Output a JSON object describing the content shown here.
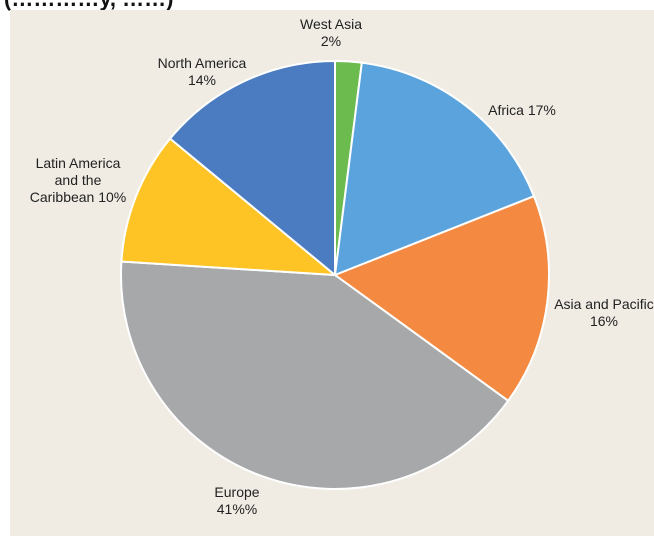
{
  "header": {
    "cut_off_text": "(…………y, ……)"
  },
  "colors": {
    "panel_bg": "#f0ece4",
    "slice_border": "#ffffff"
  },
  "chart_data": {
    "type": "pie",
    "title": "",
    "start_angle_deg": 0,
    "direction": "clockwise",
    "slices": [
      {
        "name": "West Asia",
        "value": 2,
        "color": "#6cbb4f",
        "label_lines": [
          "West Asia",
          "2%"
        ]
      },
      {
        "name": "Africa",
        "value": 17,
        "color": "#5ba3dc",
        "label_lines": [
          "Africa 17%"
        ]
      },
      {
        "name": "Asia and Pacific",
        "value": 16,
        "color": "#f48a41",
        "label_lines": [
          "Asia and Pacific",
          "16%"
        ]
      },
      {
        "name": "Europe",
        "value": 41,
        "color": "#a6a8a9",
        "label_lines": [
          "Europe",
          "41%%"
        ]
      },
      {
        "name": "Latin America and the Caribbean",
        "value": 10,
        "color": "#fec325",
        "label_lines": [
          "Latin America",
          "and the",
          "Caribbean 10%"
        ]
      },
      {
        "name": "North America",
        "value": 14,
        "color": "#4b7bc1",
        "label_lines": [
          "North America",
          "14%"
        ]
      }
    ]
  }
}
